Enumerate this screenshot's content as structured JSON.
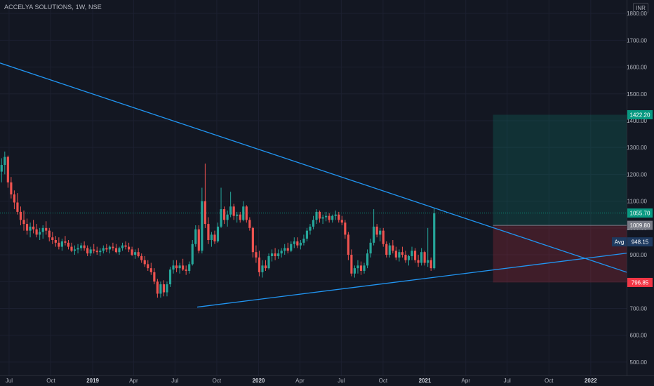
{
  "header": {
    "title": "ACCELYA SOLUTIONS, 1W, NSE",
    "currency": "INR"
  },
  "chart_data": {
    "type": "candlestick",
    "symbol": "ACCELYA SOLUTIONS",
    "interval": "1W",
    "exchange": "NSE",
    "currency": "INR",
    "ylim": [
      450,
      1850
    ],
    "x_range": [
      "2018-06-11",
      "2022-03-21"
    ],
    "y_ticks": [
      "1800.00",
      "1700.00",
      "1600.00",
      "1500.00",
      "1400.00",
      "1300.00",
      "1200.00",
      "1100.00",
      "1000.00",
      "900.00",
      "800.00",
      "700.00",
      "600.00",
      "500.00"
    ],
    "x_ticks": [
      {
        "label": "Jul",
        "date": "2018-07-01"
      },
      {
        "label": "Oct",
        "date": "2018-10-01"
      },
      {
        "label": "2019",
        "date": "2019-01-01"
      },
      {
        "label": "Apr",
        "date": "2019-04-01"
      },
      {
        "label": "Jul",
        "date": "2019-07-01"
      },
      {
        "label": "Oct",
        "date": "2019-10-01"
      },
      {
        "label": "2020",
        "date": "2020-01-01"
      },
      {
        "label": "Apr",
        "date": "2020-04-01"
      },
      {
        "label": "Jul",
        "date": "2020-07-01"
      },
      {
        "label": "Oct",
        "date": "2020-10-01"
      },
      {
        "label": "2021",
        "date": "2021-01-01"
      },
      {
        "label": "Apr",
        "date": "2021-04-01"
      },
      {
        "label": "Jul",
        "date": "2021-07-01"
      },
      {
        "label": "Oct",
        "date": "2021-10-01"
      },
      {
        "label": "2022",
        "date": "2022-01-01"
      }
    ],
    "price_labels": [
      {
        "value": 1422.2,
        "text": "1422.20",
        "color": "#089981"
      },
      {
        "value": 1055.7,
        "text": "1055.70",
        "color": "#089981"
      },
      {
        "value": 1009.8,
        "text": "1009.80",
        "color": "#787b86"
      },
      {
        "value": 948.15,
        "text": "948.15",
        "prefix": "Avg",
        "color": "#1e3a5f"
      },
      {
        "value": 796.85,
        "text": "796.85",
        "color": "#f23645"
      }
    ],
    "last_price": 1055.7,
    "trendlines": [
      {
        "name": "descending resistance",
        "from": {
          "date": "2018-06-11",
          "price": 1615
        },
        "to": {
          "date": "2022-03-21",
          "price": 835
        },
        "color": "#2196f3"
      },
      {
        "name": "ascending support",
        "from": {
          "date": "2019-08-19",
          "price": 705
        },
        "to": {
          "date": "2022-03-21",
          "price": 906
        },
        "color": "#2196f3"
      }
    ],
    "position_tool": {
      "start_date": "2021-05-31",
      "end_date": "2022-03-21",
      "entry": 1009.8,
      "target": 1422.2,
      "stop": 796.85,
      "profit_color": "#089981",
      "loss_color": "#f23645"
    },
    "candles": [
      [
        1210,
        1260,
        1170,
        1235
      ],
      [
        1235,
        1285,
        1200,
        1265
      ],
      [
        1265,
        1270,
        1150,
        1170
      ],
      [
        1170,
        1190,
        1110,
        1125
      ],
      [
        1125,
        1140,
        1070,
        1095
      ],
      [
        1095,
        1130,
        1050,
        1060
      ],
      [
        1060,
        1080,
        1010,
        1030
      ],
      [
        1030,
        1065,
        990,
        1015
      ],
      [
        1015,
        1035,
        975,
        990
      ],
      [
        990,
        1020,
        965,
        1005
      ],
      [
        1005,
        1030,
        980,
        995
      ],
      [
        995,
        1015,
        965,
        975
      ],
      [
        975,
        1000,
        955,
        985
      ],
      [
        985,
        1010,
        960,
        1000
      ],
      [
        1000,
        1025,
        975,
        990
      ],
      [
        990,
        1000,
        950,
        965
      ],
      [
        965,
        985,
        940,
        955
      ],
      [
        955,
        970,
        930,
        945
      ],
      [
        945,
        965,
        920,
        930
      ],
      [
        930,
        960,
        915,
        950
      ],
      [
        950,
        970,
        935,
        945
      ],
      [
        945,
        955,
        920,
        930
      ],
      [
        930,
        945,
        910,
        915
      ],
      [
        915,
        935,
        900,
        920
      ],
      [
        920,
        940,
        905,
        925
      ],
      [
        925,
        945,
        915,
        935
      ],
      [
        935,
        950,
        915,
        925
      ],
      [
        925,
        935,
        895,
        905
      ],
      [
        905,
        930,
        895,
        920
      ],
      [
        920,
        940,
        905,
        915
      ],
      [
        915,
        930,
        900,
        910
      ],
      [
        910,
        925,
        895,
        915
      ],
      [
        915,
        935,
        905,
        925
      ],
      [
        925,
        940,
        910,
        920
      ],
      [
        920,
        935,
        905,
        930
      ],
      [
        930,
        945,
        915,
        925
      ],
      [
        925,
        940,
        905,
        910
      ],
      [
        910,
        930,
        900,
        925
      ],
      [
        925,
        945,
        915,
        935
      ],
      [
        935,
        950,
        920,
        930
      ],
      [
        930,
        945,
        910,
        920
      ],
      [
        920,
        930,
        895,
        900
      ],
      [
        900,
        920,
        885,
        910
      ],
      [
        910,
        925,
        890,
        895
      ],
      [
        895,
        905,
        870,
        880
      ],
      [
        880,
        895,
        855,
        865
      ],
      [
        865,
        880,
        840,
        850
      ],
      [
        850,
        870,
        825,
        835
      ],
      [
        835,
        850,
        790,
        800
      ],
      [
        800,
        810,
        740,
        755
      ],
      [
        755,
        800,
        740,
        790
      ],
      [
        790,
        805,
        745,
        760
      ],
      [
        760,
        800,
        745,
        790
      ],
      [
        790,
        855,
        780,
        845
      ],
      [
        845,
        880,
        830,
        860
      ],
      [
        860,
        880,
        835,
        850
      ],
      [
        850,
        870,
        830,
        860
      ],
      [
        860,
        885,
        840,
        845
      ],
      [
        845,
        860,
        825,
        840
      ],
      [
        840,
        875,
        830,
        865
      ],
      [
        865,
        955,
        860,
        940
      ],
      [
        940,
        1010,
        930,
        995
      ],
      [
        995,
        1010,
        905,
        915
      ],
      [
        915,
        1150,
        905,
        1100
      ],
      [
        1100,
        1240,
        1000,
        1015
      ],
      [
        1015,
        1040,
        940,
        955
      ],
      [
        955,
        985,
        930,
        975
      ],
      [
        975,
        990,
        940,
        950
      ],
      [
        950,
        1020,
        945,
        1005
      ],
      [
        1005,
        1150,
        1000,
        1070
      ],
      [
        1070,
        1080,
        1015,
        1030
      ],
      [
        1030,
        1065,
        1005,
        1050
      ],
      [
        1050,
        1135,
        1040,
        1080
      ],
      [
        1080,
        1090,
        1030,
        1045
      ],
      [
        1045,
        1060,
        1020,
        1050
      ],
      [
        1050,
        1060,
        1020,
        1030
      ],
      [
        1030,
        1100,
        1025,
        1080
      ],
      [
        1080,
        1085,
        1020,
        1030
      ],
      [
        1030,
        1040,
        990,
        1000
      ],
      [
        1000,
        1005,
        890,
        910
      ],
      [
        910,
        935,
        870,
        890
      ],
      [
        890,
        915,
        820,
        835
      ],
      [
        835,
        880,
        815,
        860
      ],
      [
        860,
        880,
        840,
        850
      ],
      [
        850,
        905,
        845,
        895
      ],
      [
        895,
        920,
        875,
        905
      ],
      [
        905,
        925,
        880,
        895
      ],
      [
        895,
        920,
        885,
        905
      ],
      [
        905,
        925,
        890,
        915
      ],
      [
        915,
        940,
        900,
        925
      ],
      [
        925,
        945,
        905,
        915
      ],
      [
        915,
        950,
        910,
        940
      ],
      [
        940,
        965,
        925,
        950
      ],
      [
        950,
        965,
        925,
        935
      ],
      [
        935,
        955,
        920,
        945
      ],
      [
        945,
        975,
        935,
        960
      ],
      [
        960,
        1000,
        950,
        990
      ],
      [
        990,
        1015,
        975,
        1005
      ],
      [
        1005,
        1045,
        995,
        1030
      ],
      [
        1030,
        1070,
        1015,
        1060
      ],
      [
        1060,
        1065,
        1020,
        1035
      ],
      [
        1035,
        1050,
        1015,
        1040
      ],
      [
        1040,
        1060,
        1025,
        1045
      ],
      [
        1045,
        1055,
        1020,
        1030
      ],
      [
        1030,
        1050,
        1020,
        1045
      ],
      [
        1045,
        1065,
        1030,
        1050
      ],
      [
        1050,
        1060,
        1020,
        1030
      ],
      [
        1030,
        1045,
        1010,
        1020
      ],
      [
        1020,
        1030,
        960,
        975
      ],
      [
        975,
        985,
        880,
        900
      ],
      [
        900,
        920,
        820,
        830
      ],
      [
        830,
        860,
        815,
        850
      ],
      [
        850,
        880,
        830,
        860
      ],
      [
        860,
        875,
        825,
        840
      ],
      [
        840,
        870,
        830,
        860
      ],
      [
        860,
        920,
        850,
        905
      ],
      [
        905,
        960,
        890,
        945
      ],
      [
        945,
        1070,
        935,
        1005
      ],
      [
        1005,
        1015,
        965,
        975
      ],
      [
        975,
        1000,
        950,
        990
      ],
      [
        990,
        1000,
        930,
        940
      ],
      [
        940,
        950,
        890,
        900
      ],
      [
        900,
        945,
        890,
        935
      ],
      [
        935,
        955,
        905,
        915
      ],
      [
        915,
        930,
        880,
        890
      ],
      [
        890,
        920,
        875,
        910
      ],
      [
        910,
        930,
        890,
        900
      ],
      [
        900,
        915,
        870,
        880
      ],
      [
        880,
        900,
        860,
        895
      ],
      [
        895,
        930,
        880,
        915
      ],
      [
        915,
        925,
        870,
        880
      ],
      [
        880,
        900,
        855,
        870
      ],
      [
        870,
        925,
        860,
        910
      ],
      [
        910,
        915,
        860,
        870
      ],
      [
        870,
        1000,
        855,
        880
      ],
      [
        880,
        890,
        840,
        850
      ],
      [
        850,
        1075,
        845,
        1055
      ]
    ]
  }
}
